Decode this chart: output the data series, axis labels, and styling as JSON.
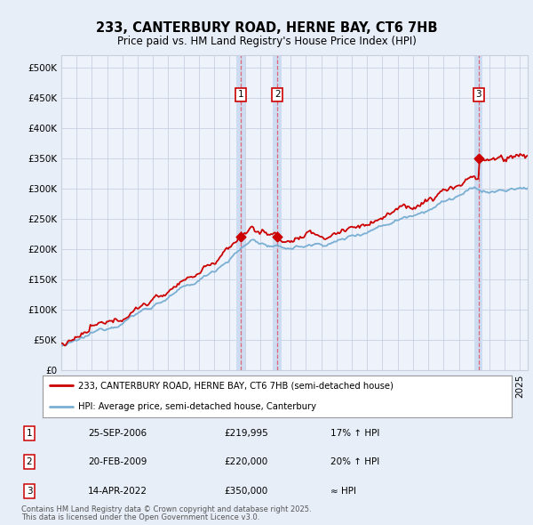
{
  "title": "233, CANTERBURY ROAD, HERNE BAY, CT6 7HB",
  "subtitle": "Price paid vs. HM Land Registry's House Price Index (HPI)",
  "legend_line1": "233, CANTERBURY ROAD, HERNE BAY, CT6 7HB (semi-detached house)",
  "legend_line2": "HPI: Average price, semi-detached house, Canterbury",
  "footer1": "Contains HM Land Registry data © Crown copyright and database right 2025.",
  "footer2": "This data is licensed under the Open Government Licence v3.0.",
  "transactions": [
    {
      "num": 1,
      "date": "25-SEP-2006",
      "price": "£219,995",
      "hpi": "17% ↑ HPI",
      "year": 2006.73,
      "value": 219995
    },
    {
      "num": 2,
      "date": "20-FEB-2009",
      "price": "£220,000",
      "hpi": "20% ↑ HPI",
      "year": 2009.13,
      "value": 220000
    },
    {
      "num": 3,
      "date": "14-APR-2022",
      "price": "£350,000",
      "hpi": "≈ HPI",
      "year": 2022.29,
      "value": 350000
    }
  ],
  "price_color": "#cc0000",
  "hpi_color": "#7aafd4",
  "background_color": "#e8eef8",
  "plot_bg_color": "#eef2fa",
  "grid_color": "#c8d0e0",
  "shade_color": "#cddcf0",
  "ymin": 0,
  "ymax": 520000,
  "xmin": 1995,
  "xmax": 2025.5,
  "yticks": [
    0,
    50000,
    100000,
    150000,
    200000,
    250000,
    300000,
    350000,
    400000,
    450000,
    500000
  ]
}
